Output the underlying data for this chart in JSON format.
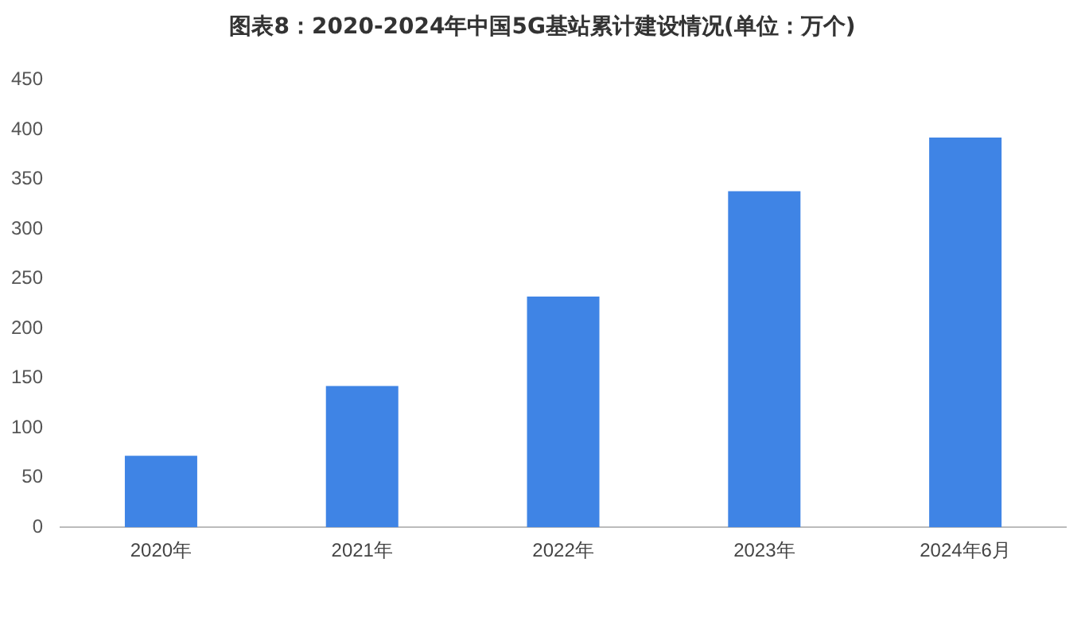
{
  "chart_data": {
    "type": "bar",
    "title": "图表8：2020-2024年中国5G基站累计建设情况(单位：万个)",
    "categories": [
      "2020年",
      "2021年",
      "2022年",
      "2023年",
      "2024年6月"
    ],
    "values": [
      72,
      142,
      232,
      338,
      392
    ],
    "color": "#3f84e5",
    "ylim": [
      0,
      450
    ],
    "yticks": [
      0,
      50,
      100,
      150,
      200,
      250,
      300,
      350,
      400,
      450
    ],
    "grid": false,
    "legend": false
  }
}
